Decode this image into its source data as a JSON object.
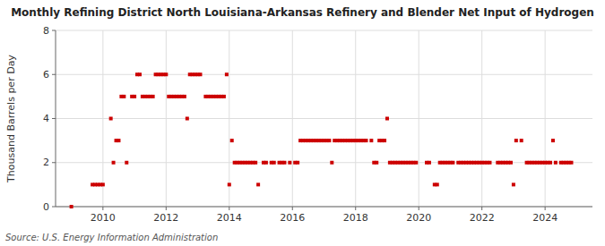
{
  "chart_data": {
    "type": "scatter",
    "title": "Monthly Refining District North Louisiana-Arkansas Refinery and Blender Net Input of Hydrogen",
    "ylabel": "Thousand Barrels per Day",
    "source": "Source: U.S. Energy Information Administration",
    "color": "#cc0000",
    "marker": "square",
    "grid": true,
    "xlim": [
      2008.5,
      2025.5
    ],
    "xticks": [
      2010,
      2012,
      2014,
      2016,
      2018,
      2020,
      2022,
      2024
    ],
    "ylim": [
      0,
      8
    ],
    "yticks": [
      0,
      2,
      4,
      6,
      8
    ],
    "x": [
      2009.0,
      2009.667,
      2009.75,
      2009.833,
      2009.917,
      2010.0,
      2010.25,
      2010.333,
      2010.417,
      2010.5,
      2010.583,
      2010.667,
      2010.75,
      2010.917,
      2011.0,
      2011.083,
      2011.167,
      2011.25,
      2011.333,
      2011.417,
      2011.5,
      2011.583,
      2011.667,
      2011.75,
      2011.833,
      2011.917,
      2012.0,
      2012.083,
      2012.167,
      2012.25,
      2012.333,
      2012.417,
      2012.5,
      2012.583,
      2012.667,
      2012.75,
      2012.833,
      2012.917,
      2013.0,
      2013.083,
      2013.25,
      2013.333,
      2013.417,
      2013.5,
      2013.583,
      2013.667,
      2013.75,
      2013.833,
      2013.917,
      2014.0,
      2014.083,
      2014.167,
      2014.25,
      2014.333,
      2014.417,
      2014.5,
      2014.583,
      2014.667,
      2014.75,
      2014.833,
      2014.917,
      2015.083,
      2015.167,
      2015.333,
      2015.417,
      2015.583,
      2015.667,
      2015.75,
      2015.917,
      2016.083,
      2016.167,
      2016.25,
      2016.333,
      2016.417,
      2016.5,
      2016.583,
      2016.667,
      2016.75,
      2016.833,
      2016.917,
      2017.0,
      2017.083,
      2017.167,
      2017.25,
      2017.333,
      2017.417,
      2017.5,
      2017.583,
      2017.667,
      2017.75,
      2017.833,
      2017.917,
      2018.0,
      2018.083,
      2018.167,
      2018.25,
      2018.333,
      2018.5,
      2018.583,
      2018.667,
      2018.75,
      2018.833,
      2018.917,
      2019.0,
      2019.083,
      2019.167,
      2019.25,
      2019.333,
      2019.417,
      2019.5,
      2019.583,
      2019.667,
      2019.75,
      2019.833,
      2019.917,
      2020.25,
      2020.333,
      2020.5,
      2020.583,
      2020.667,
      2020.75,
      2020.833,
      2020.917,
      2021.0,
      2021.083,
      2021.25,
      2021.333,
      2021.417,
      2021.5,
      2021.583,
      2021.667,
      2021.75,
      2021.833,
      2021.917,
      2022.0,
      2022.083,
      2022.167,
      2022.25,
      2022.5,
      2022.583,
      2022.667,
      2022.75,
      2022.833,
      2022.917,
      2023.0,
      2023.083,
      2023.25,
      2023.417,
      2023.5,
      2023.583,
      2023.667,
      2023.75,
      2023.833,
      2023.917,
      2024.0,
      2024.083,
      2024.167,
      2024.25,
      2024.333,
      2024.5,
      2024.583,
      2024.667,
      2024.75,
      2024.833
    ],
    "values": [
      0.0,
      1.0,
      1.0,
      1.0,
      1.0,
      1.0,
      4.0,
      2.0,
      3.0,
      3.0,
      5.0,
      5.0,
      2.0,
      5.0,
      5.0,
      6.0,
      6.0,
      5.0,
      5.0,
      5.0,
      5.0,
      5.0,
      6.0,
      6.0,
      6.0,
      6.0,
      6.0,
      5.0,
      5.0,
      5.0,
      5.0,
      5.0,
      5.0,
      5.0,
      4.0,
      6.0,
      6.0,
      6.0,
      6.0,
      6.0,
      5.0,
      5.0,
      5.0,
      5.0,
      5.0,
      5.0,
      5.0,
      5.0,
      6.0,
      1.0,
      3.0,
      2.0,
      2.0,
      2.0,
      2.0,
      2.0,
      2.0,
      2.0,
      2.0,
      2.0,
      1.0,
      2.0,
      2.0,
      2.0,
      2.0,
      2.0,
      2.0,
      2.0,
      2.0,
      2.0,
      2.0,
      3.0,
      3.0,
      3.0,
      3.0,
      3.0,
      3.0,
      3.0,
      3.0,
      3.0,
      3.0,
      3.0,
      3.0,
      2.0,
      3.0,
      3.0,
      3.0,
      3.0,
      3.0,
      3.0,
      3.0,
      3.0,
      3.0,
      3.0,
      3.0,
      3.0,
      3.0,
      3.0,
      2.0,
      2.0,
      3.0,
      3.0,
      3.0,
      4.0,
      2.0,
      2.0,
      2.0,
      2.0,
      2.0,
      2.0,
      2.0,
      2.0,
      2.0,
      2.0,
      2.0,
      2.0,
      2.0,
      1.0,
      1.0,
      2.0,
      2.0,
      2.0,
      2.0,
      2.0,
      2.0,
      2.0,
      2.0,
      2.0,
      2.0,
      2.0,
      2.0,
      2.0,
      2.0,
      2.0,
      2.0,
      2.0,
      2.0,
      2.0,
      2.0,
      2.0,
      2.0,
      2.0,
      2.0,
      2.0,
      1.0,
      3.0,
      3.0,
      2.0,
      2.0,
      2.0,
      2.0,
      2.0,
      2.0,
      2.0,
      2.0,
      2.0,
      2.0,
      3.0,
      2.0,
      2.0,
      2.0,
      2.0,
      2.0,
      2.0
    ]
  }
}
